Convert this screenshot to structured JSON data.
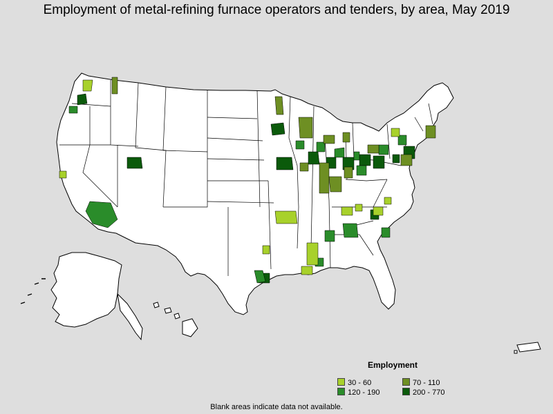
{
  "title": "Employment of metal-refining furnace operators and tenders, by area, May 2019",
  "legend": {
    "title": "Employment",
    "items": [
      {
        "label": "30 - 60",
        "color": "#a8d12b"
      },
      {
        "label": "70 - 110",
        "color": "#6e8f23"
      },
      {
        "label": "120 - 190",
        "color": "#2a8c2a"
      },
      {
        "label": "200 - 770",
        "color": "#0b5a0b"
      }
    ]
  },
  "footnote": "Blank areas indicate data not available.",
  "colors": {
    "background": "#dedede",
    "land": "#ffffff",
    "border": "#000000"
  }
}
